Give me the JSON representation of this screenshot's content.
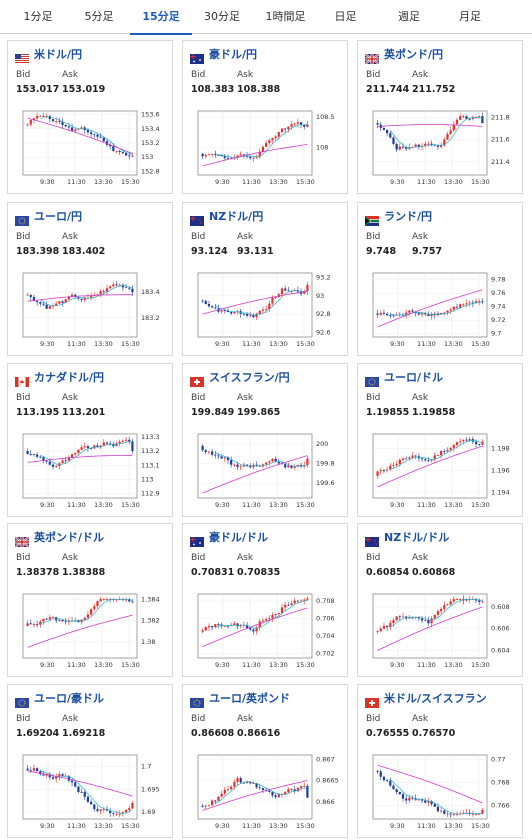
{
  "tabs": [
    {
      "label": "1分足",
      "active": false
    },
    {
      "label": "5分足",
      "active": false
    },
    {
      "label": "15分足",
      "active": true
    },
    {
      "label": "30分足",
      "active": false
    },
    {
      "label": "1時間足",
      "active": false
    },
    {
      "label": "日足",
      "active": false
    },
    {
      "label": "週足",
      "active": false
    },
    {
      "label": "月足",
      "active": false
    }
  ],
  "labels": {
    "bid": "Bid",
    "ask": "Ask"
  },
  "colors": {
    "up": "#e53030",
    "down": "#1f3f9a",
    "ma_short": "#29b3c9",
    "ma_long": "#d23cc9",
    "title": "#1a4ea0",
    "active_tab": "#1a5dbf"
  },
  "pairs": [
    {
      "name": "米ドル/円",
      "flag": "us-flag-icon",
      "bid": "153.017",
      "ask": "153.019",
      "times": [
        "9:30",
        "11:30",
        "13:30",
        "15:30"
      ],
      "y_ticks": [
        "153.6",
        "153.4",
        "153.2",
        "153",
        "152.8"
      ],
      "ymin": 152.75,
      "ymax": 153.65,
      "open": 153.45,
      "close": 153.02,
      "path": [
        0.9,
        -0.15,
        0.2,
        -0.25,
        0.1
      ],
      "ma_long_start": 153.55,
      "ma_long_end": 153.05
    },
    {
      "name": "豪ドル/円",
      "flag": "au-flag-icon",
      "bid": "108.383",
      "ask": "108.388",
      "times": [
        "9:30",
        "11:30",
        "13:30",
        "15:30"
      ],
      "y_ticks": [
        "108.5",
        "108"
      ],
      "ymin": 107.55,
      "ymax": 108.6,
      "open": 107.9,
      "close": 108.38,
      "path": [
        -0.25,
        -0.35,
        0.85,
        -0.2
      ],
      "ma_long_start": 107.7,
      "ma_long_end": 108.05
    },
    {
      "name": "英ポンド/円",
      "flag": "uk-flag-icon",
      "bid": "211.744",
      "ask": "211.752",
      "times": [
        "9:30",
        "11:30",
        "13:30",
        "15:30"
      ],
      "y_ticks": [
        "211.8",
        "211.6",
        "211.4"
      ],
      "ymin": 211.28,
      "ymax": 211.86,
      "open": 211.75,
      "close": 211.75,
      "path": [
        -0.8,
        0.1,
        0.15,
        0.95,
        -0.1
      ],
      "ma_long_start": 211.72,
      "ma_long_end": 211.72
    },
    {
      "name": "ユーロ/円",
      "flag": "eu-flag-icon",
      "bid": "183.398",
      "ask": "183.402",
      "times": [
        "9:30",
        "11:30",
        "13:30",
        "15:30"
      ],
      "y_ticks": [
        "183.4",
        "183.2"
      ],
      "ymin": 183.05,
      "ymax": 183.55,
      "open": 183.38,
      "close": 183.4,
      "path": [
        -0.3,
        0.2,
        -0.15,
        0.35,
        -0.05
      ],
      "ma_long_start": 183.33,
      "ma_long_end": 183.38
    },
    {
      "name": "NZドル/円",
      "flag": "nz-flag-icon",
      "bid": "93.124",
      "ask": "93.131",
      "times": [
        "9:30",
        "11:30",
        "13:30",
        "15:30"
      ],
      "y_ticks": [
        "93.2",
        "93",
        "92.8",
        "92.6"
      ],
      "ymin": 92.55,
      "ymax": 93.25,
      "open": 92.95,
      "close": 93.12,
      "path": [
        -0.35,
        -0.15,
        0.8,
        -0.15
      ],
      "ma_long_start": 92.8,
      "ma_long_end": 93.05
    },
    {
      "name": "ランド/円",
      "flag": "za-flag-icon",
      "bid": "9.748",
      "ask": "9.757",
      "times": [
        "9:30",
        "11:30",
        "13:30",
        "15:30"
      ],
      "y_ticks": [
        "9.78",
        "9.76",
        "9.74",
        "9.72",
        "9.7"
      ],
      "ymin": 9.695,
      "ymax": 9.79,
      "open": 9.73,
      "close": 9.748,
      "path": [
        -0.15,
        0.1,
        0.25,
        0.35,
        -0.1
      ],
      "ma_long_start": 9.71,
      "ma_long_end": 9.765
    },
    {
      "name": "カナダドル/円",
      "flag": "ca-flag-icon",
      "bid": "113.195",
      "ask": "113.201",
      "times": [
        "9:30",
        "11:30",
        "13:30",
        "15:30"
      ],
      "y_ticks": [
        "113.3",
        "113.2",
        "113.1",
        "113",
        "112.9"
      ],
      "ymin": 112.87,
      "ymax": 113.32,
      "open": 113.2,
      "close": 113.2,
      "path": [
        -0.4,
        0.3,
        0.05,
        0.05
      ],
      "ma_long_start": 113.12,
      "ma_long_end": 113.17
    },
    {
      "name": "スイスフラン/円",
      "flag": "ch-flag-icon",
      "bid": "199.849",
      "ask": "199.865",
      "times": [
        "9:30",
        "11:30",
        "13:30",
        "15:30"
      ],
      "y_ticks": [
        "200",
        "199.8",
        "199.6"
      ],
      "ymin": 199.45,
      "ymax": 200.1,
      "open": 199.98,
      "close": 199.85,
      "path": [
        -0.65,
        0.55,
        -0.1
      ],
      "ma_long_start": 199.5,
      "ma_long_end": 199.88
    },
    {
      "name": "ユーロ/ドル",
      "flag": "eu-flag-icon",
      "bid": "1.19855",
      "ask": "1.19858",
      "times": [
        "9:30",
        "11:30",
        "13:30",
        "15:30"
      ],
      "y_ticks": [
        "1.198",
        "1.196",
        "1.194"
      ],
      "ymin": 1.1935,
      "ymax": 1.1993,
      "open": 1.1955,
      "close": 1.1986,
      "path": [
        0.55,
        -0.35,
        0.6,
        -0.1
      ],
      "ma_long_start": 1.1945,
      "ma_long_end": 1.1982
    },
    {
      "name": "英ポンド/ドル",
      "flag": "uk-flag-icon",
      "bid": "1.38378",
      "ask": "1.38388",
      "times": [
        "9:30",
        "11:30",
        "13:30",
        "15:30"
      ],
      "y_ticks": [
        "1.384",
        "1.382",
        "1.38"
      ],
      "ymin": 1.3785,
      "ymax": 1.3845,
      "open": 1.3815,
      "close": 1.3838,
      "path": [
        0.35,
        -0.5,
        0.75,
        0.1
      ],
      "ma_long_start": 1.3795,
      "ma_long_end": 1.3825
    },
    {
      "name": "豪ドル/ドル",
      "flag": "au-flag-icon",
      "bid": "0.70831",
      "ask": "0.70835",
      "times": [
        "9:30",
        "11:30",
        "13:30",
        "15:30"
      ],
      "y_ticks": [
        "0.708",
        "0.706",
        "0.704",
        "0.702"
      ],
      "ymin": 0.7015,
      "ymax": 0.7088,
      "open": 0.7045,
      "close": 0.7083,
      "path": [
        0.1,
        -0.35,
        0.8,
        -0.1
      ],
      "ma_long_start": 0.7028,
      "ma_long_end": 0.7072
    },
    {
      "name": "NZドル/ドル",
      "flag": "nz-flag-icon",
      "bid": "0.60854",
      "ask": "0.60868",
      "times": [
        "9:30",
        "11:30",
        "13:30",
        "15:30"
      ],
      "y_ticks": [
        "0.608",
        "0.606",
        "0.604"
      ],
      "ymin": 0.6033,
      "ymax": 0.6092,
      "open": 0.6057,
      "close": 0.6085,
      "path": [
        0.25,
        -0.5,
        0.8,
        -0.1
      ],
      "ma_long_start": 0.604,
      "ma_long_end": 0.608
    },
    {
      "name": "ユーロ/豪ドル",
      "flag": "eu-flag-icon",
      "bid": "1.69204",
      "ask": "1.69218",
      "times": [
        "9:30",
        "11:30",
        "13:30",
        "15:30"
      ],
      "y_ticks": [
        "1.7",
        "1.695",
        "1.69"
      ],
      "ymin": 1.6885,
      "ymax": 1.7025,
      "open": 1.6995,
      "close": 1.692,
      "path": [
        0.15,
        -0.8,
        0.15
      ],
      "ma_long_start": 1.699,
      "ma_long_end": 1.6935
    },
    {
      "name": "ユーロ/英ポンド",
      "flag": "eu-flag-icon",
      "bid": "0.86608",
      "ask": "0.86616",
      "times": [
        "9:30",
        "11:30",
        "13:30",
        "15:30"
      ],
      "y_ticks": [
        "0.867",
        "0.8665",
        "0.866"
      ],
      "ymin": 0.8656,
      "ymax": 0.8671,
      "open": 0.8659,
      "close": 0.8661,
      "path": [
        0.8,
        -0.85,
        0.2
      ],
      "ma_long_start": 0.8658,
      "ma_long_end": 0.8665
    },
    {
      "name": "米ドル/スイスフラン",
      "flag": "ch-flag-icon",
      "bid": "0.76555",
      "ask": "0.76570",
      "times": [
        "9:30",
        "11:30",
        "13:30",
        "15:30"
      ],
      "y_ticks": [
        "0.77",
        "0.768",
        "0.766"
      ],
      "ymin": 0.7648,
      "ymax": 0.7704,
      "open": 0.769,
      "close": 0.7656,
      "path": [
        -0.7,
        0.2,
        -0.35,
        0.05
      ],
      "ma_long_start": 0.7695,
      "ma_long_end": 0.7662
    }
  ]
}
